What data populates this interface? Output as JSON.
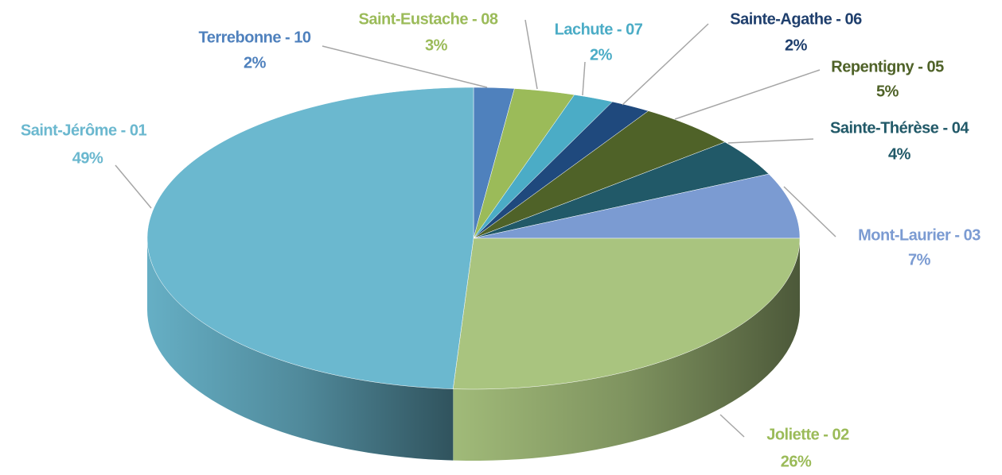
{
  "chart_data": {
    "type": "pie",
    "categories": [
      "Terrebonne - 10",
      "Saint-Eustache - 08",
      "Lachute - 07",
      "Sainte-Agathe - 06",
      "Repentigny - 05",
      "Sainte-Thérèse - 04",
      "Mont-Laurier - 03",
      "Joliette - 02",
      "Saint-Jérôme - 01"
    ],
    "values": [
      2,
      3,
      2,
      2,
      5,
      4,
      7,
      26,
      49
    ],
    "value_labels": [
      "2%",
      "3%",
      "2%",
      "2%",
      "5%",
      "4%",
      "7%",
      "26%",
      "49%"
    ],
    "colors": [
      "#4f81bd",
      "#9bbb59",
      "#4bacc6",
      "#1f497d",
      "#4f6228",
      "#215968",
      "#7b9bd2",
      "#a9c47f",
      "#6bb8cf"
    ],
    "label_colors": [
      "#4f81bd",
      "#9bbb59",
      "#4bacc6",
      "#1f3f6d",
      "#4f6228",
      "#215968",
      "#7b9bd2",
      "#9bbb59",
      "#6bb8cf"
    ]
  }
}
